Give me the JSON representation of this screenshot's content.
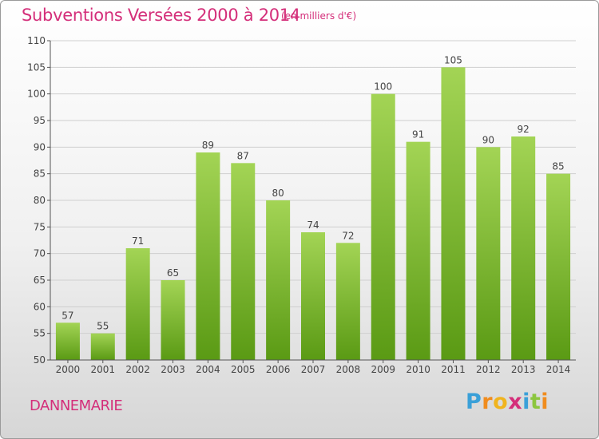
{
  "header": {
    "title": "Subventions Versées 2000 à 2014",
    "unit": "(en milliers d'€)"
  },
  "footer": {
    "commune": "DANNEMARIE",
    "logo_letters": [
      "P",
      "r",
      "o",
      "x",
      "i",
      "t",
      "i"
    ],
    "logo_colors": [
      "#3aa0d8",
      "#f08c1e",
      "#f0b41e",
      "#d42f7a",
      "#3aa0d8",
      "#8cc63f",
      "#f08c1e"
    ]
  },
  "colors": {
    "bar_light": "#a3d455",
    "bar_dark": "#5a9a14",
    "grid": "#cfcfcf",
    "axis": "#555555",
    "text": "#444444",
    "accent": "#d42f7a"
  },
  "chart_data": {
    "type": "bar",
    "title": "Subventions Versées 2000 à 2014",
    "subtitle": "(en milliers d'€)",
    "xlabel": "",
    "ylabel": "",
    "categories": [
      "2000",
      "2001",
      "2002",
      "2003",
      "2004",
      "2005",
      "2006",
      "2007",
      "2008",
      "2009",
      "2010",
      "2011",
      "2012",
      "2013",
      "2014"
    ],
    "values": [
      57,
      55,
      71,
      65,
      89,
      87,
      80,
      74,
      72,
      100,
      91,
      105,
      90,
      92,
      85
    ],
    "ylim": [
      50,
      110
    ],
    "yticks": [
      50,
      55,
      60,
      65,
      70,
      75,
      80,
      85,
      90,
      95,
      100,
      105,
      110
    ],
    "grid": true,
    "data_labels": true
  }
}
